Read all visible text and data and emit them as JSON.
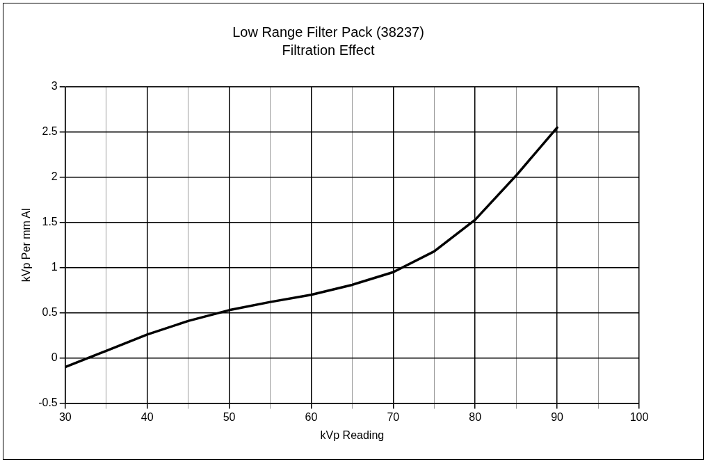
{
  "chart_data": {
    "type": "line",
    "title": "Low Range Filter Pack (38237)",
    "subtitle": "Filtration Effect",
    "xlabel": "kVp Reading",
    "ylabel": "kVp Per mm Al",
    "x": [
      30,
      35,
      40,
      45,
      50,
      55,
      60,
      65,
      70,
      75,
      80,
      85,
      90
    ],
    "series": [
      {
        "color": "#000000",
        "values": [
          -0.1,
          0.08,
          0.26,
          0.41,
          0.53,
          0.62,
          0.7,
          0.81,
          0.95,
          1.18,
          1.53,
          2.02,
          2.55
        ]
      }
    ],
    "xlim": [
      30,
      100
    ],
    "xticks": [
      30,
      {
        "value": 35,
        "label": null
      },
      40,
      {
        "value": 45,
        "label": null
      },
      50,
      {
        "value": 55,
        "label": null
      },
      60,
      {
        "value": 65,
        "label": null
      },
      70,
      {
        "value": 75,
        "label": null
      },
      80,
      {
        "value": 85,
        "label": null
      },
      90,
      {
        "value": 95,
        "label": null
      },
      100
    ],
    "ylim": [
      -0.5,
      3
    ],
    "yticks": [
      -0.5,
      0,
      0.5,
      1,
      1.5,
      2,
      2.5,
      3
    ],
    "grid": true,
    "legend": false,
    "marker": "none",
    "line_style": "solid"
  }
}
